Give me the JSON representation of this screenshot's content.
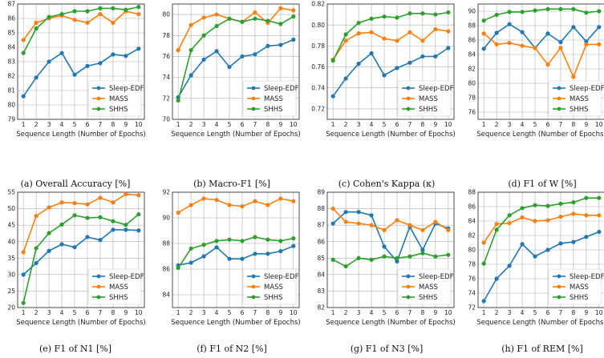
{
  "x_label": "Sequence Length (Number of Epochs)",
  "series_colors": {
    "Sleep-EDF": "#1f77b4",
    "MASS": "#ff7f0e",
    "SHHS": "#2ca02c"
  },
  "chart_data": [
    {
      "type": "line",
      "caption": "(a) Overall Accuracy [%]",
      "x": [
        1,
        2,
        3,
        4,
        5,
        6,
        7,
        8,
        9,
        10
      ],
      "xlabel": "Sequence Length (Number of Epochs)",
      "ylim": [
        79,
        87
      ],
      "yticks": [
        79,
        80,
        81,
        82,
        83,
        84,
        85,
        86,
        87
      ],
      "legend": "lower-right",
      "series": [
        {
          "name": "Sleep-EDF",
          "values": [
            80.6,
            81.9,
            83.0,
            83.6,
            82.1,
            82.7,
            82.9,
            83.5,
            83.4,
            83.9
          ]
        },
        {
          "name": "MASS",
          "values": [
            84.5,
            85.7,
            86.0,
            86.2,
            85.9,
            85.7,
            86.3,
            85.7,
            86.5,
            86.3
          ]
        },
        {
          "name": "SHHS",
          "values": [
            83.6,
            85.3,
            86.1,
            86.3,
            86.5,
            86.5,
            86.7,
            86.7,
            86.6,
            86.8
          ]
        }
      ]
    },
    {
      "type": "line",
      "caption": "(b) Macro-F1 [%]",
      "x": [
        1,
        2,
        3,
        4,
        5,
        6,
        7,
        8,
        9,
        10
      ],
      "xlabel": "Sequence Length (Number of Epochs)",
      "ylim": [
        70,
        81
      ],
      "yticks": [
        70,
        72,
        74,
        76,
        78,
        80
      ],
      "legend": "lower-right",
      "series": [
        {
          "name": "Sleep-EDF",
          "values": [
            72.1,
            74.2,
            75.7,
            76.5,
            75.0,
            76.0,
            76.2,
            77.0,
            77.1,
            77.6
          ]
        },
        {
          "name": "MASS",
          "values": [
            76.6,
            79.0,
            79.7,
            80.0,
            79.6,
            79.3,
            80.2,
            79.2,
            80.6,
            80.4
          ]
        },
        {
          "name": "SHHS",
          "values": [
            71.8,
            76.6,
            78.0,
            78.9,
            79.6,
            79.3,
            79.6,
            79.4,
            79.1,
            79.8
          ]
        }
      ]
    },
    {
      "type": "line",
      "caption": "(c) Cohen's Kappa (κ)",
      "x": [
        1,
        2,
        3,
        4,
        5,
        6,
        7,
        8,
        9,
        10
      ],
      "xlabel": "Sequence Length (Number of Epochs)",
      "ylim": [
        0.71,
        0.82
      ],
      "yticks": [
        "0.72",
        "0.74",
        "0.76",
        "0.78",
        "0.80",
        "0.82"
      ],
      "legend": "lower-right",
      "series": [
        {
          "name": "Sleep-EDF",
          "values": [
            0.732,
            0.749,
            0.763,
            0.773,
            0.752,
            0.759,
            0.764,
            0.77,
            0.77,
            0.778
          ]
        },
        {
          "name": "MASS",
          "values": [
            0.767,
            0.785,
            0.792,
            0.793,
            0.787,
            0.785,
            0.793,
            0.785,
            0.796,
            0.794
          ]
        },
        {
          "name": "SHHS",
          "values": [
            0.766,
            0.791,
            0.802,
            0.806,
            0.808,
            0.807,
            0.811,
            0.811,
            0.81,
            0.812
          ]
        }
      ]
    },
    {
      "type": "line",
      "caption": "(d) F1 of W [%]",
      "x": [
        1,
        2,
        3,
        4,
        5,
        6,
        7,
        8,
        9,
        10
      ],
      "xlabel": "Sequence Length (Number of Epochs)",
      "ylim": [
        75,
        91
      ],
      "yticks": [
        76,
        78,
        80,
        82,
        84,
        86,
        88,
        90
      ],
      "legend": "lower-right",
      "series": [
        {
          "name": "Sleep-EDF",
          "values": [
            84.8,
            87.0,
            88.2,
            87.1,
            84.9,
            86.9,
            85.7,
            87.8,
            85.8,
            87.8
          ]
        },
        {
          "name": "MASS",
          "values": [
            86.9,
            85.4,
            85.6,
            85.2,
            84.9,
            82.6,
            84.9,
            80.9,
            85.4,
            85.4
          ]
        },
        {
          "name": "SHHS",
          "values": [
            88.7,
            89.5,
            89.9,
            89.9,
            90.1,
            90.3,
            90.3,
            90.3,
            89.8,
            90.0
          ]
        }
      ]
    },
    {
      "type": "line",
      "caption": "(e) F1 of N1 [%]",
      "x": [
        1,
        2,
        3,
        4,
        5,
        6,
        7,
        8,
        9,
        10
      ],
      "xlabel": "Sequence Length (Number of Epochs)",
      "ylim": [
        20,
        55
      ],
      "yticks": [
        20,
        25,
        30,
        35,
        40,
        45,
        50,
        55
      ],
      "legend": "lower-right",
      "series": [
        {
          "name": "Sleep-EDF",
          "values": [
            30.0,
            33.5,
            37.2,
            39.2,
            38.3,
            41.4,
            40.5,
            43.6,
            43.6,
            43.4
          ]
        },
        {
          "name": "MASS",
          "values": [
            36.8,
            47.8,
            50.4,
            51.9,
            51.7,
            51.3,
            53.3,
            51.9,
            54.4,
            54.1
          ]
        },
        {
          "name": "SHHS",
          "values": [
            21.4,
            38.0,
            42.6,
            45.2,
            48.0,
            47.2,
            47.4,
            46.2,
            45.1,
            48.3
          ]
        }
      ]
    },
    {
      "type": "line",
      "caption": "(f) F1 of N2 [%]",
      "x": [
        1,
        2,
        3,
        4,
        5,
        6,
        7,
        8,
        9,
        10
      ],
      "xlabel": "Sequence Length (Number of Epochs)",
      "ylim": [
        83,
        92
      ],
      "yticks": [
        84,
        86,
        88,
        90,
        92
      ],
      "legend": "lower-right",
      "series": [
        {
          "name": "Sleep-EDF",
          "values": [
            86.3,
            86.5,
            87.0,
            87.7,
            86.8,
            86.8,
            87.2,
            87.2,
            87.4,
            87.8
          ]
        },
        {
          "name": "MASS",
          "values": [
            90.4,
            91.0,
            91.5,
            91.4,
            91.0,
            90.9,
            91.3,
            91.0,
            91.5,
            91.3
          ]
        },
        {
          "name": "SHHS",
          "values": [
            86.1,
            87.6,
            87.9,
            88.2,
            88.3,
            88.2,
            88.5,
            88.3,
            88.2,
            88.4
          ]
        }
      ]
    },
    {
      "type": "line",
      "caption": "(g) F1 of N3 [%]",
      "x": [
        1,
        2,
        3,
        4,
        5,
        6,
        7,
        8,
        9,
        10
      ],
      "xlabel": "Sequence Length (Number of Epochs)",
      "ylim": [
        82,
        89
      ],
      "yticks": [
        82,
        83,
        84,
        85,
        86,
        87,
        88,
        89
      ],
      "legend": "lower-right",
      "series": [
        {
          "name": "Sleep-EDF",
          "values": [
            87.1,
            87.8,
            87.8,
            87.6,
            85.7,
            84.8,
            86.9,
            85.5,
            87.1,
            86.8
          ]
        },
        {
          "name": "MASS",
          "values": [
            88.0,
            87.2,
            87.1,
            87.0,
            86.7,
            87.3,
            87.0,
            86.7,
            87.2,
            86.7
          ]
        },
        {
          "name": "SHHS",
          "values": [
            84.9,
            84.5,
            85.0,
            84.9,
            85.1,
            85.0,
            85.1,
            85.3,
            85.1,
            85.2
          ]
        }
      ]
    },
    {
      "type": "line",
      "caption": "(h) F1 of REM [%]",
      "x": [
        1,
        2,
        3,
        4,
        5,
        6,
        7,
        8,
        9,
        10
      ],
      "xlabel": "Sequence Length (Number of Epochs)",
      "ylim": [
        72,
        88
      ],
      "yticks": [
        72,
        74,
        76,
        78,
        80,
        82,
        84,
        86,
        88
      ],
      "legend": "lower-right",
      "series": [
        {
          "name": "Sleep-EDF",
          "values": [
            72.9,
            76.0,
            77.8,
            80.8,
            79.1,
            80.0,
            80.9,
            81.1,
            81.8,
            82.5
          ]
        },
        {
          "name": "MASS",
          "values": [
            81.0,
            83.6,
            83.7,
            84.5,
            84.0,
            84.1,
            84.6,
            85.0,
            84.8,
            84.8
          ]
        },
        {
          "name": "SHHS",
          "values": [
            78.1,
            82.8,
            84.8,
            85.8,
            86.2,
            86.1,
            86.4,
            86.6,
            87.2,
            87.2
          ]
        }
      ]
    }
  ]
}
